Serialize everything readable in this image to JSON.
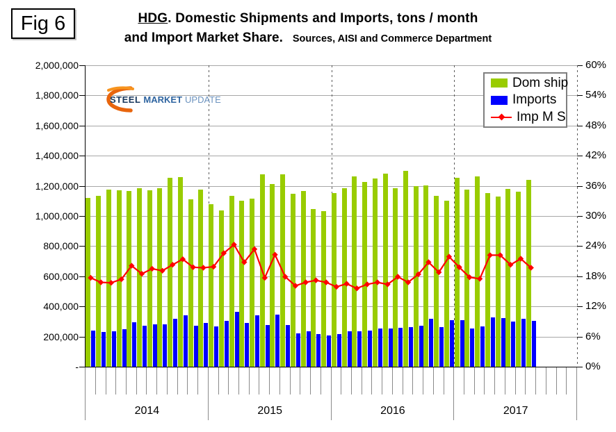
{
  "figure_label": "Fig 6",
  "title": {
    "underlined": "HDG",
    "line1_rest": ". Domestic Shipments and Imports, tons / month",
    "line2": "and Import Market Share.",
    "sources": "Sources, AISI and Commerce Department"
  },
  "logo": {
    "word1": "STEEL",
    "word2": "MARKET",
    "word3": "UPDATE",
    "swoosh_color": "#E8650D"
  },
  "legend": [
    {
      "label": "Dom ship",
      "color": "#99CC00",
      "marker": "bar-swatch"
    },
    {
      "label": "Imports",
      "color": "#0000FF",
      "marker": "bar-swatch"
    },
    {
      "label": "Imp M S",
      "color": "#FF0000",
      "marker": "line-with-diamond"
    }
  ],
  "chart_data": {
    "type": "bar",
    "subtype": "monthly bars with line on secondary axis",
    "x": {
      "years": [
        "2014",
        "2015",
        "2016",
        "2017"
      ],
      "months_per_year": 12,
      "total_month_slots": 48,
      "months_with_data": 44,
      "first_month": "2014-01",
      "last_month": "2017-08"
    },
    "y_left": {
      "min": 0,
      "max": 2000000,
      "step": 200000,
      "tick_labels": [
        "2,000,000",
        "1,800,000",
        "1,600,000",
        "1,400,000",
        "1,200,000",
        "1,000,000",
        "800,000",
        "600,000",
        "400,000",
        "200,000",
        "-"
      ]
    },
    "y_right": {
      "min": 0,
      "max": 60,
      "step": 6,
      "tick_labels": [
        "60%",
        "54%",
        "48%",
        "42%",
        "36%",
        "30%",
        "24%",
        "18%",
        "12%",
        "6%",
        "0%"
      ]
    },
    "grid": true,
    "legend_position": "top-right",
    "series": [
      {
        "name": "Dom ship",
        "type": "bar",
        "axis": "left",
        "color": "#99CC00",
        "values": [
          1120000,
          1135000,
          1177000,
          1173000,
          1166000,
          1186000,
          1169000,
          1186000,
          1253000,
          1258000,
          1109000,
          1177000,
          1078000,
          1038000,
          1135000,
          1101000,
          1115000,
          1276000,
          1212000,
          1278000,
          1150000,
          1166000,
          1047000,
          1032000,
          1153000,
          1184000,
          1263000,
          1227000,
          1250000,
          1281000,
          1186000,
          1301000,
          1197000,
          1204000,
          1135000,
          1101000,
          1253000,
          1174000,
          1263000,
          1153000,
          1128000,
          1181000,
          1161000,
          1238000
        ]
      },
      {
        "name": "Imports",
        "type": "bar",
        "axis": "left",
        "color": "#0000FF",
        "values": [
          241000,
          229000,
          236000,
          247000,
          294000,
          270000,
          283000,
          280000,
          319000,
          342000,
          273000,
          289000,
          267000,
          303000,
          364000,
          289000,
          340000,
          275000,
          347000,
          278000,
          221000,
          236000,
          217000,
          209000,
          218000,
          234000,
          234000,
          241000,
          252000,
          252000,
          259000,
          263000,
          270000,
          316000,
          264000,
          309000,
          310000,
          255000,
          267000,
          329000,
          321000,
          301000,
          318000,
          303000
        ]
      },
      {
        "name": "Imp M S",
        "type": "line",
        "axis": "right",
        "unit": "%",
        "color": "#FF0000",
        "marker": "diamond",
        "values": [
          17.7,
          16.8,
          16.7,
          17.4,
          20.1,
          18.5,
          19.5,
          19.1,
          20.3,
          21.4,
          19.8,
          19.7,
          19.9,
          22.6,
          24.3,
          20.8,
          23.4,
          17.7,
          22.3,
          17.9,
          16.1,
          16.8,
          17.2,
          16.8,
          15.9,
          16.5,
          15.6,
          16.4,
          16.8,
          16.4,
          17.9,
          16.8,
          18.4,
          20.8,
          18.8,
          21.9,
          19.8,
          17.8,
          17.5,
          22.2,
          22.2,
          20.3,
          21.5,
          19.7
        ]
      }
    ]
  }
}
